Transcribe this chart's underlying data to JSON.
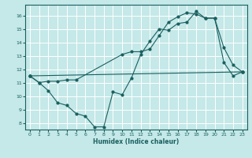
{
  "title": "",
  "xlabel": "Humidex (Indice chaleur)",
  "background_color": "#c5e8e8",
  "line_color": "#1a6060",
  "xlim": [
    -0.5,
    23.5
  ],
  "ylim": [
    7.5,
    16.8
  ],
  "yticks": [
    8,
    9,
    10,
    11,
    12,
    13,
    14,
    15,
    16
  ],
  "xticks": [
    0,
    1,
    2,
    3,
    4,
    5,
    6,
    7,
    8,
    9,
    10,
    11,
    12,
    13,
    14,
    15,
    16,
    17,
    18,
    19,
    20,
    21,
    22,
    23
  ],
  "line1_x": [
    0,
    1,
    2,
    3,
    4,
    5,
    6,
    7,
    8,
    9,
    10,
    11,
    12,
    13,
    14,
    15,
    16,
    17,
    18,
    19,
    20,
    21,
    22,
    23
  ],
  "line1_y": [
    11.5,
    11.0,
    10.4,
    9.5,
    9.3,
    8.7,
    8.5,
    7.7,
    7.7,
    10.3,
    10.1,
    11.35,
    13.1,
    14.1,
    15.0,
    14.9,
    15.4,
    15.5,
    16.3,
    15.8,
    15.8,
    13.6,
    12.3,
    11.8
  ],
  "line2_x": [
    0,
    1,
    2,
    3,
    4,
    5,
    10,
    11,
    12,
    13,
    14,
    15,
    16,
    17,
    18,
    19,
    20,
    21,
    22,
    23
  ],
  "line2_y": [
    11.5,
    11.0,
    11.1,
    11.1,
    11.2,
    11.2,
    13.1,
    13.3,
    13.3,
    13.5,
    14.5,
    15.5,
    15.9,
    16.2,
    16.1,
    15.8,
    15.8,
    12.5,
    11.5,
    11.8
  ],
  "line3_x": [
    0,
    23
  ],
  "line3_y": [
    11.5,
    11.8
  ]
}
